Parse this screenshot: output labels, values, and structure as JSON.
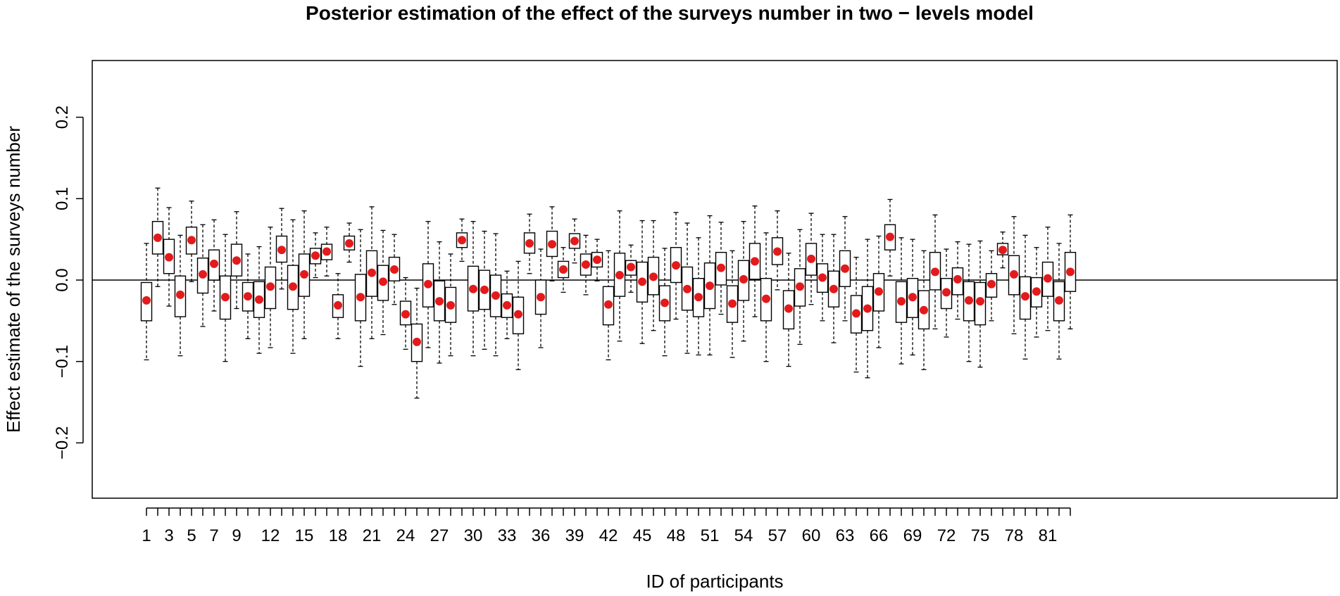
{
  "chart_data": {
    "type": "box",
    "title": "Posterior estimation of the effect of the surveys number in two − levels model",
    "xlabel": "ID of participants",
    "ylabel": "Effect estimate of the surveys number",
    "ylim": [
      -0.27,
      0.27
    ],
    "yticks": [
      -0.2,
      -0.1,
      0.0,
      0.1,
      0.2
    ],
    "ytick_labels": [
      "−0.2",
      "−0.1",
      "0.0",
      "0.1",
      "0.2"
    ],
    "reference_line": 0.0,
    "xtick_labels": [
      "1",
      "3",
      "5",
      "7",
      "9",
      "12",
      "15",
      "18",
      "21",
      "24",
      "27",
      "30",
      "33",
      "36",
      "39",
      "42",
      "45",
      "48",
      "51",
      "54",
      "57",
      "60",
      "63",
      "66",
      "69",
      "72",
      "75",
      "78",
      "81"
    ],
    "n_participants": 83,
    "median_color": "#e31a1c",
    "box_color": "#000000",
    "series": [
      {
        "id": 1,
        "low": -0.098,
        "q1": -0.05,
        "median": -0.025,
        "q3": -0.003,
        "high": 0.045
      },
      {
        "id": 2,
        "low": -0.008,
        "q1": 0.032,
        "median": 0.052,
        "q3": 0.072,
        "high": 0.113
      },
      {
        "id": 3,
        "low": -0.032,
        "q1": 0.008,
        "median": 0.028,
        "q3": 0.05,
        "high": 0.089
      },
      {
        "id": 4,
        "low": -0.093,
        "q1": -0.045,
        "median": -0.018,
        "q3": 0.005,
        "high": 0.055
      },
      {
        "id": 5,
        "low": -0.002,
        "q1": 0.032,
        "median": 0.049,
        "q3": 0.065,
        "high": 0.097
      },
      {
        "id": 6,
        "low": -0.057,
        "q1": -0.016,
        "median": 0.007,
        "q3": 0.027,
        "high": 0.068
      },
      {
        "id": 7,
        "low": -0.038,
        "q1": 0.0,
        "median": 0.02,
        "q3": 0.037,
        "high": 0.074
      },
      {
        "id": 8,
        "low": -0.1,
        "q1": -0.048,
        "median": -0.021,
        "q3": 0.005,
        "high": 0.056
      },
      {
        "id": 9,
        "low": -0.035,
        "q1": 0.005,
        "median": 0.024,
        "q3": 0.044,
        "high": 0.084
      },
      {
        "id": 10,
        "low": -0.072,
        "q1": -0.038,
        "median": -0.02,
        "q3": -0.003,
        "high": 0.032
      },
      {
        "id": 11,
        "low": -0.09,
        "q1": -0.046,
        "median": -0.024,
        "q3": -0.002,
        "high": 0.041
      },
      {
        "id": 12,
        "low": -0.083,
        "q1": -0.035,
        "median": -0.008,
        "q3": 0.016,
        "high": 0.065
      },
      {
        "id": 13,
        "low": -0.011,
        "q1": 0.022,
        "median": 0.037,
        "q3": 0.054,
        "high": 0.088
      },
      {
        "id": 14,
        "low": -0.09,
        "q1": -0.036,
        "median": -0.008,
        "q3": 0.018,
        "high": 0.074
      },
      {
        "id": 15,
        "low": -0.072,
        "q1": -0.02,
        "median": 0.007,
        "q3": 0.032,
        "high": 0.085
      },
      {
        "id": 16,
        "low": 0.003,
        "q1": 0.02,
        "median": 0.03,
        "q3": 0.039,
        "high": 0.058
      },
      {
        "id": 17,
        "low": 0.005,
        "q1": 0.025,
        "median": 0.035,
        "q3": 0.044,
        "high": 0.065
      },
      {
        "id": 18,
        "low": -0.072,
        "q1": -0.046,
        "median": -0.031,
        "q3": -0.018,
        "high": 0.008
      },
      {
        "id": 19,
        "low": 0.022,
        "q1": 0.037,
        "median": 0.045,
        "q3": 0.054,
        "high": 0.07
      },
      {
        "id": 20,
        "low": -0.106,
        "q1": -0.05,
        "median": -0.021,
        "q3": 0.007,
        "high": 0.062
      },
      {
        "id": 21,
        "low": -0.072,
        "q1": -0.02,
        "median": 0.009,
        "q3": 0.036,
        "high": 0.09
      },
      {
        "id": 22,
        "low": -0.067,
        "q1": -0.025,
        "median": -0.002,
        "q3": 0.018,
        "high": 0.061
      },
      {
        "id": 23,
        "low": -0.03,
        "q1": -0.001,
        "median": 0.013,
        "q3": 0.028,
        "high": 0.056
      },
      {
        "id": 24,
        "low": -0.085,
        "q1": -0.055,
        "median": -0.042,
        "q3": -0.026,
        "high": 0.003
      },
      {
        "id": 25,
        "low": -0.145,
        "q1": -0.1,
        "median": -0.076,
        "q3": -0.054,
        "high": -0.01
      },
      {
        "id": 26,
        "low": -0.083,
        "q1": -0.033,
        "median": -0.005,
        "q3": 0.02,
        "high": 0.072
      },
      {
        "id": 27,
        "low": -0.102,
        "q1": -0.05,
        "median": -0.026,
        "q3": -0.001,
        "high": 0.047
      },
      {
        "id": 28,
        "low": -0.093,
        "q1": -0.052,
        "median": -0.031,
        "q3": -0.009,
        "high": 0.032
      },
      {
        "id": 29,
        "low": 0.023,
        "q1": 0.04,
        "median": 0.049,
        "q3": 0.058,
        "high": 0.075
      },
      {
        "id": 30,
        "low": -0.093,
        "q1": -0.038,
        "median": -0.011,
        "q3": 0.017,
        "high": 0.072
      },
      {
        "id": 31,
        "low": -0.085,
        "q1": -0.036,
        "median": -0.012,
        "q3": 0.012,
        "high": 0.06
      },
      {
        "id": 32,
        "low": -0.093,
        "q1": -0.045,
        "median": -0.019,
        "q3": 0.006,
        "high": 0.057
      },
      {
        "id": 33,
        "low": -0.072,
        "q1": -0.046,
        "median": -0.031,
        "q3": -0.017,
        "high": 0.011
      },
      {
        "id": 34,
        "low": -0.11,
        "q1": -0.066,
        "median": -0.042,
        "q3": -0.021,
        "high": 0.023
      },
      {
        "id": 35,
        "low": 0.008,
        "q1": 0.033,
        "median": 0.045,
        "q3": 0.058,
        "high": 0.081
      },
      {
        "id": 36,
        "low": -0.083,
        "q1": -0.042,
        "median": -0.021,
        "q3": 0.0,
        "high": 0.038
      },
      {
        "id": 37,
        "low": -0.001,
        "q1": 0.029,
        "median": 0.044,
        "q3": 0.06,
        "high": 0.09
      },
      {
        "id": 38,
        "low": -0.015,
        "q1": 0.003,
        "median": 0.013,
        "q3": 0.023,
        "high": 0.04
      },
      {
        "id": 39,
        "low": 0.021,
        "q1": 0.039,
        "median": 0.048,
        "q3": 0.057,
        "high": 0.075
      },
      {
        "id": 40,
        "low": -0.018,
        "q1": 0.006,
        "median": 0.019,
        "q3": 0.032,
        "high": 0.055
      },
      {
        "id": 41,
        "low": -0.001,
        "q1": 0.016,
        "median": 0.025,
        "q3": 0.034,
        "high": 0.05
      },
      {
        "id": 42,
        "low": -0.098,
        "q1": -0.055,
        "median": -0.03,
        "q3": -0.008,
        "high": 0.036
      },
      {
        "id": 43,
        "low": -0.075,
        "q1": -0.02,
        "median": 0.006,
        "q3": 0.033,
        "high": 0.085
      },
      {
        "id": 44,
        "low": -0.015,
        "q1": 0.006,
        "median": 0.016,
        "q3": 0.024,
        "high": 0.043
      },
      {
        "id": 45,
        "low": -0.078,
        "q1": -0.027,
        "median": -0.002,
        "q3": 0.022,
        "high": 0.073
      },
      {
        "id": 46,
        "low": -0.062,
        "q1": -0.018,
        "median": 0.004,
        "q3": 0.028,
        "high": 0.073
      },
      {
        "id": 47,
        "low": -0.093,
        "q1": -0.05,
        "median": -0.028,
        "q3": -0.007,
        "high": 0.039
      },
      {
        "id": 48,
        "low": -0.048,
        "q1": -0.003,
        "median": 0.018,
        "q3": 0.04,
        "high": 0.083
      },
      {
        "id": 49,
        "low": -0.09,
        "q1": -0.037,
        "median": -0.011,
        "q3": 0.016,
        "high": 0.07
      },
      {
        "id": 50,
        "low": -0.092,
        "q1": -0.045,
        "median": -0.021,
        "q3": 0.002,
        "high": 0.052
      },
      {
        "id": 51,
        "low": -0.092,
        "q1": -0.035,
        "median": -0.007,
        "q3": 0.021,
        "high": 0.079
      },
      {
        "id": 52,
        "low": -0.042,
        "q1": -0.006,
        "median": 0.015,
        "q3": 0.034,
        "high": 0.071
      },
      {
        "id": 53,
        "low": -0.095,
        "q1": -0.052,
        "median": -0.029,
        "q3": -0.007,
        "high": 0.036
      },
      {
        "id": 54,
        "low": -0.075,
        "q1": -0.025,
        "median": 0.001,
        "q3": 0.024,
        "high": 0.072
      },
      {
        "id": 55,
        "low": -0.045,
        "q1": 0.001,
        "median": 0.023,
        "q3": 0.045,
        "high": 0.091
      },
      {
        "id": 56,
        "low": -0.1,
        "q1": -0.05,
        "median": -0.023,
        "q3": 0.002,
        "high": 0.058
      },
      {
        "id": 57,
        "low": -0.012,
        "q1": 0.019,
        "median": 0.035,
        "q3": 0.052,
        "high": 0.085
      },
      {
        "id": 58,
        "low": -0.106,
        "q1": -0.06,
        "median": -0.035,
        "q3": -0.013,
        "high": 0.033
      },
      {
        "id": 59,
        "low": -0.079,
        "q1": -0.032,
        "median": -0.008,
        "q3": 0.014,
        "high": 0.062
      },
      {
        "id": 60,
        "low": -0.03,
        "q1": 0.006,
        "median": 0.026,
        "q3": 0.045,
        "high": 0.082
      },
      {
        "id": 61,
        "low": -0.05,
        "q1": -0.015,
        "median": 0.003,
        "q3": 0.02,
        "high": 0.056
      },
      {
        "id": 62,
        "low": -0.077,
        "q1": -0.033,
        "median": -0.011,
        "q3": 0.011,
        "high": 0.056
      },
      {
        "id": 63,
        "low": -0.05,
        "q1": -0.008,
        "median": 0.014,
        "q3": 0.036,
        "high": 0.078
      },
      {
        "id": 64,
        "low": -0.113,
        "q1": -0.065,
        "median": -0.041,
        "q3": -0.019,
        "high": 0.028
      },
      {
        "id": 65,
        "low": -0.12,
        "q1": -0.062,
        "median": -0.035,
        "q3": -0.008,
        "high": 0.05
      },
      {
        "id": 66,
        "low": -0.083,
        "q1": -0.038,
        "median": -0.014,
        "q3": 0.008,
        "high": 0.054
      },
      {
        "id": 67,
        "low": 0.005,
        "q1": 0.037,
        "median": 0.053,
        "q3": 0.068,
        "high": 0.099
      },
      {
        "id": 68,
        "low": -0.103,
        "q1": -0.052,
        "median": -0.026,
        "q3": -0.002,
        "high": 0.052
      },
      {
        "id": 69,
        "low": -0.092,
        "q1": -0.046,
        "median": -0.021,
        "q3": 0.002,
        "high": 0.05
      },
      {
        "id": 70,
        "low": -0.11,
        "q1": -0.06,
        "median": -0.037,
        "q3": -0.013,
        "high": 0.036
      },
      {
        "id": 71,
        "low": -0.06,
        "q1": -0.012,
        "median": 0.01,
        "q3": 0.034,
        "high": 0.08
      },
      {
        "id": 72,
        "low": -0.07,
        "q1": -0.035,
        "median": -0.015,
        "q3": 0.002,
        "high": 0.038
      },
      {
        "id": 73,
        "low": -0.048,
        "q1": -0.018,
        "median": 0.001,
        "q3": 0.015,
        "high": 0.047
      },
      {
        "id": 74,
        "low": -0.1,
        "q1": -0.05,
        "median": -0.025,
        "q3": -0.002,
        "high": 0.044
      },
      {
        "id": 75,
        "low": -0.107,
        "q1": -0.055,
        "median": -0.026,
        "q3": -0.003,
        "high": 0.048
      },
      {
        "id": 76,
        "low": -0.05,
        "q1": -0.021,
        "median": -0.005,
        "q3": 0.008,
        "high": 0.036
      },
      {
        "id": 77,
        "low": 0.015,
        "q1": 0.031,
        "median": 0.037,
        "q3": 0.045,
        "high": 0.059
      },
      {
        "id": 78,
        "low": -0.066,
        "q1": -0.018,
        "median": 0.007,
        "q3": 0.03,
        "high": 0.078
      },
      {
        "id": 79,
        "low": -0.097,
        "q1": -0.048,
        "median": -0.02,
        "q3": 0.004,
        "high": 0.055
      },
      {
        "id": 80,
        "low": -0.07,
        "q1": -0.033,
        "median": -0.014,
        "q3": 0.003,
        "high": 0.04
      },
      {
        "id": 81,
        "low": -0.062,
        "q1": -0.02,
        "median": 0.002,
        "q3": 0.022,
        "high": 0.065
      },
      {
        "id": 82,
        "low": -0.097,
        "q1": -0.05,
        "median": -0.025,
        "q3": -0.002,
        "high": 0.045
      },
      {
        "id": 83,
        "low": -0.06,
        "q1": -0.014,
        "median": 0.01,
        "q3": 0.034,
        "high": 0.08
      }
    ]
  }
}
